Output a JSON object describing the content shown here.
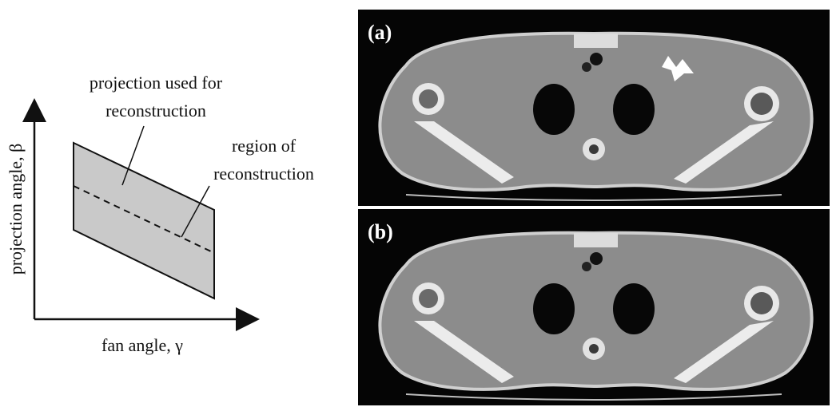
{
  "diagram": {
    "label_projection_line1": "projection used for",
    "label_projection_line2": "reconstruction",
    "label_region_line1": "region of",
    "label_region_line2": "reconstruction",
    "ylabel": "projection angle, β",
    "xlabel": "fan angle, γ"
  },
  "panels": [
    {
      "label": "(a)"
    },
    {
      "label": "(b)"
    }
  ]
}
